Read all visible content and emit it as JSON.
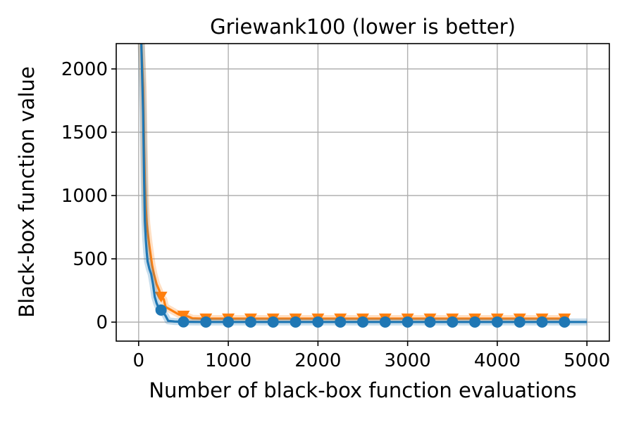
{
  "chart_data": {
    "type": "line",
    "title": "Griewank100 (lower is better)",
    "xlabel": "Number of black-box function evaluations",
    "ylabel": "Black-box function value",
    "xlim": [
      -250,
      5250
    ],
    "ylim": [
      -150,
      2200
    ],
    "xticks": [
      0,
      1000,
      2000,
      3000,
      4000,
      5000
    ],
    "yticks": [
      0,
      500,
      1000,
      1500,
      2000
    ],
    "grid": true,
    "series": [
      {
        "color": "#ff7f0e",
        "marker": "triangle-down",
        "x": [
          30,
          50,
          60,
          70,
          80,
          90,
          100,
          120,
          150,
          170,
          200,
          230,
          250,
          280,
          300,
          350,
          400,
          450,
          500,
          550,
          600,
          700,
          800,
          1000,
          1500,
          2000,
          2500,
          3000,
          3500,
          4000,
          4500,
          4800
        ],
        "y": [
          2200,
          1850,
          1400,
          1100,
          900,
          780,
          720,
          600,
          450,
          380,
          300,
          250,
          200,
          180,
          120,
          100,
          80,
          60,
          50,
          45,
          30,
          28,
          28,
          28,
          28,
          28,
          28,
          28,
          28,
          28,
          28,
          28
        ],
        "markers_x": [
          250,
          500,
          750,
          1000,
          1250,
          1500,
          1750,
          2000,
          2250,
          2500,
          2750,
          3000,
          3250,
          3500,
          3750,
          4000,
          4250,
          4500,
          4750
        ],
        "markers_y": [
          200,
          50,
          28,
          28,
          28,
          28,
          28,
          28,
          28,
          28,
          28,
          28,
          28,
          28,
          28,
          28,
          28,
          28,
          28
        ]
      },
      {
        "color": "#1f77b4",
        "marker": "circle",
        "x": [
          30,
          50,
          60,
          70,
          80,
          90,
          100,
          120,
          140,
          160,
          180,
          200,
          230,
          260,
          300,
          330,
          400,
          500,
          700,
          1000,
          2000,
          3000,
          4000,
          5000
        ],
        "y": [
          2200,
          1650,
          1150,
          800,
          650,
          550,
          480,
          420,
          380,
          300,
          200,
          150,
          100,
          90,
          50,
          10,
          5,
          2,
          1,
          1,
          1,
          1,
          1,
          1
        ],
        "markers_x": [
          250,
          500,
          750,
          1000,
          1250,
          1500,
          1750,
          2000,
          2250,
          2500,
          2750,
          3000,
          3250,
          3500,
          3750,
          4000,
          4250,
          4500,
          4750
        ],
        "markers_y": [
          95,
          2,
          1,
          1,
          1,
          1,
          1,
          1,
          1,
          1,
          1,
          1,
          1,
          1,
          1,
          1,
          1,
          1,
          1
        ]
      }
    ]
  }
}
